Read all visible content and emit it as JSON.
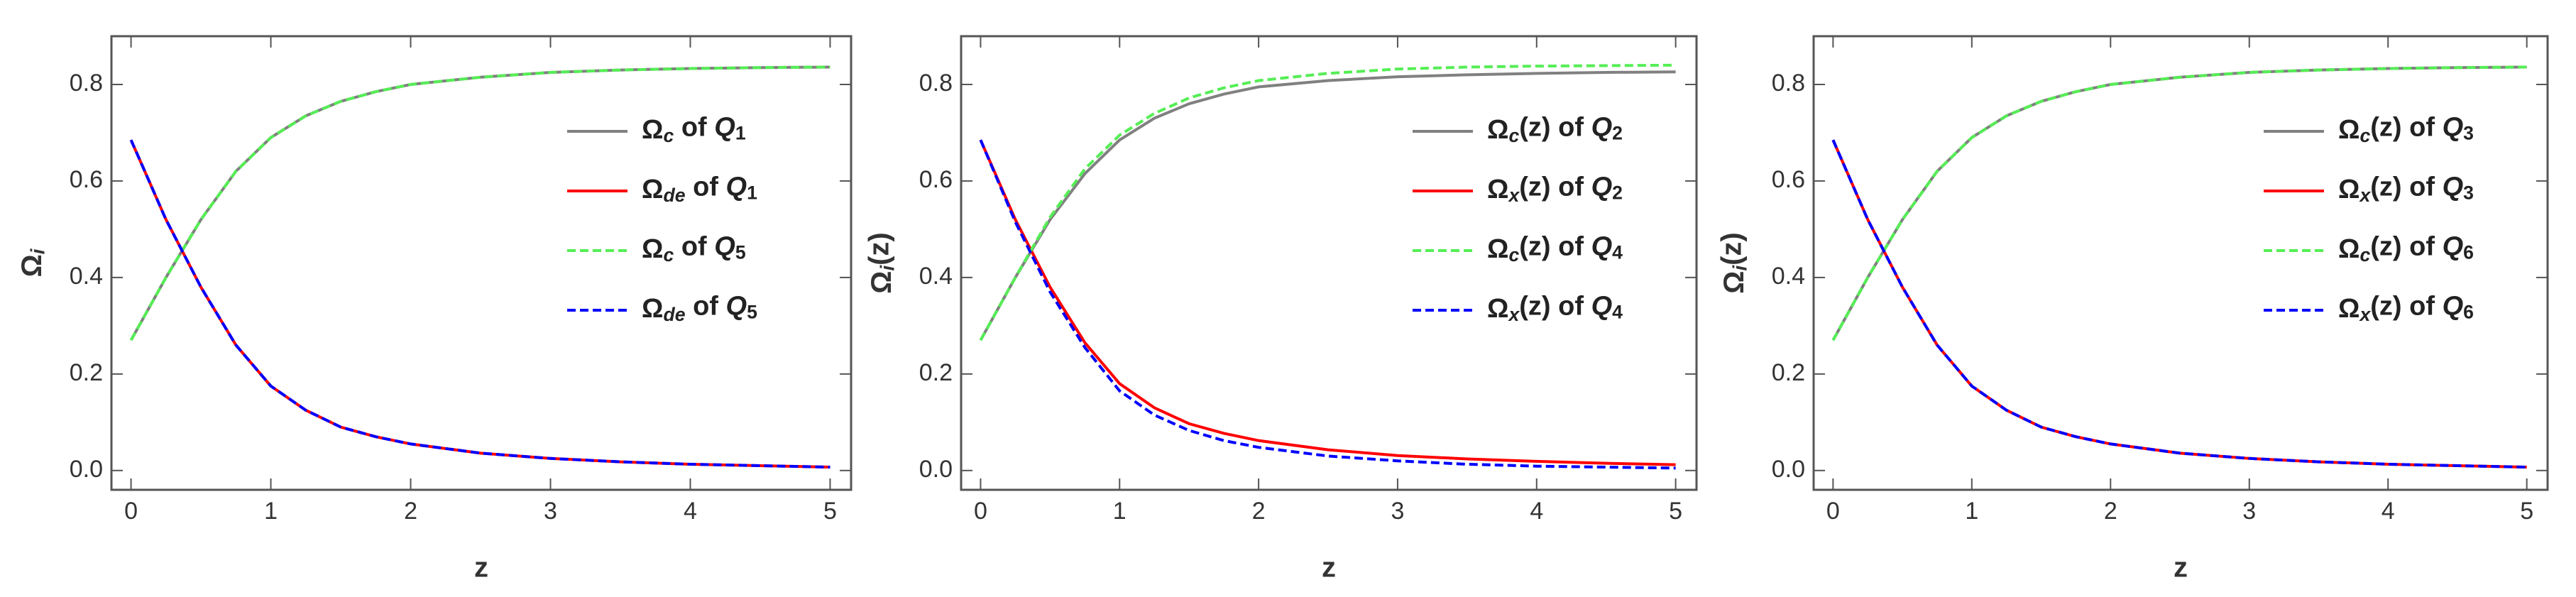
{
  "chart_data": [
    {
      "type": "line",
      "xlabel": "z",
      "ylabel": "Ωi",
      "legend": "right",
      "x": [
        0,
        0.25,
        0.5,
        0.75,
        1,
        1.25,
        1.5,
        1.75,
        2,
        2.5,
        3,
        3.5,
        4,
        4.5,
        5
      ],
      "xlim": [
        -0.14,
        5.15
      ],
      "ylim": [
        -0.04,
        0.9
      ],
      "xticks": [
        0,
        1,
        2,
        3,
        4,
        5
      ],
      "yticks": [
        {
          "value": 0,
          "label": "0.0"
        },
        {
          "value": 0.2,
          "label": "0.2"
        },
        {
          "value": 0.4,
          "label": "0.4"
        },
        {
          "value": 0.6,
          "label": "0.6"
        },
        {
          "value": 0.8,
          "label": "0.8"
        }
      ],
      "series": [
        {
          "name": "Ωc of Q1",
          "color": "#808080",
          "linestyle": "solid",
          "values": [
            0.27,
            0.4,
            0.52,
            0.62,
            0.69,
            0.735,
            0.765,
            0.785,
            0.8,
            0.815,
            0.825,
            0.83,
            0.833,
            0.835,
            0.836
          ]
        },
        {
          "name": "Ωde of Q1",
          "color": "#ff0000",
          "linestyle": "solid",
          "values": [
            0.685,
            0.52,
            0.38,
            0.26,
            0.175,
            0.125,
            0.09,
            0.07,
            0.055,
            0.036,
            0.025,
            0.018,
            0.013,
            0.01,
            0.007
          ]
        },
        {
          "name": "Ωc of Q5",
          "color": "#55ee55",
          "linestyle": "dashed",
          "values": [
            0.27,
            0.4,
            0.52,
            0.62,
            0.69,
            0.735,
            0.765,
            0.785,
            0.8,
            0.815,
            0.825,
            0.83,
            0.833,
            0.835,
            0.836
          ]
        },
        {
          "name": "Ωde of Q5",
          "color": "#0000ff",
          "linestyle": "dashed",
          "values": [
            0.685,
            0.52,
            0.38,
            0.26,
            0.175,
            0.125,
            0.09,
            0.07,
            0.055,
            0.036,
            0.025,
            0.018,
            0.013,
            0.01,
            0.007
          ]
        }
      ]
    },
    {
      "type": "line",
      "xlabel": "z",
      "ylabel": "Ωi(z)",
      "legend": "right",
      "x": [
        0,
        0.25,
        0.5,
        0.75,
        1,
        1.25,
        1.5,
        1.75,
        2,
        2.5,
        3,
        3.5,
        4,
        4.5,
        5
      ],
      "xlim": [
        -0.14,
        5.15
      ],
      "ylim": [
        -0.04,
        0.9
      ],
      "xticks": [
        0,
        1,
        2,
        3,
        4,
        5
      ],
      "yticks": [
        {
          "value": 0,
          "label": "0.0"
        },
        {
          "value": 0.2,
          "label": "0.2"
        },
        {
          "value": 0.4,
          "label": "0.4"
        },
        {
          "value": 0.6,
          "label": "0.6"
        },
        {
          "value": 0.8,
          "label": "0.8"
        }
      ],
      "series": [
        {
          "name": "Ωc(z) of Q2",
          "color": "#808080",
          "linestyle": "solid",
          "values": [
            0.27,
            0.4,
            0.52,
            0.615,
            0.685,
            0.73,
            0.76,
            0.78,
            0.795,
            0.808,
            0.816,
            0.82,
            0.823,
            0.825,
            0.826
          ]
        },
        {
          "name": "Ωx(z) of Q2",
          "color": "#ff0000",
          "linestyle": "solid",
          "values": [
            0.685,
            0.52,
            0.38,
            0.265,
            0.18,
            0.13,
            0.097,
            0.077,
            0.062,
            0.043,
            0.031,
            0.024,
            0.019,
            0.015,
            0.012
          ]
        },
        {
          "name": "Ωc(z) of Q4",
          "color": "#55ee55",
          "linestyle": "dashed",
          "values": [
            0.27,
            0.4,
            0.525,
            0.625,
            0.695,
            0.74,
            0.772,
            0.793,
            0.808,
            0.823,
            0.832,
            0.836,
            0.838,
            0.839,
            0.84
          ]
        },
        {
          "name": "Ωx(z) of Q4",
          "color": "#0000ff",
          "linestyle": "dashed",
          "values": [
            0.685,
            0.515,
            0.37,
            0.255,
            0.165,
            0.115,
            0.083,
            0.062,
            0.048,
            0.03,
            0.02,
            0.013,
            0.009,
            0.007,
            0.005
          ]
        }
      ]
    },
    {
      "type": "line",
      "xlabel": "z",
      "ylabel": "Ωi(z)",
      "legend": "right",
      "x": [
        0,
        0.25,
        0.5,
        0.75,
        1,
        1.25,
        1.5,
        1.75,
        2,
        2.5,
        3,
        3.5,
        4,
        4.5,
        5
      ],
      "xlim": [
        -0.14,
        5.15
      ],
      "ylim": [
        -0.04,
        0.9
      ],
      "xticks": [
        0,
        1,
        2,
        3,
        4,
        5
      ],
      "yticks": [
        {
          "value": 0,
          "label": "0.0"
        },
        {
          "value": 0.2,
          "label": "0.2"
        },
        {
          "value": 0.4,
          "label": "0.4"
        },
        {
          "value": 0.6,
          "label": "0.6"
        },
        {
          "value": 0.8,
          "label": "0.8"
        }
      ],
      "series": [
        {
          "name": "Ωc(z) of Q3",
          "color": "#808080",
          "linestyle": "solid",
          "values": [
            0.27,
            0.4,
            0.52,
            0.62,
            0.69,
            0.735,
            0.765,
            0.785,
            0.8,
            0.815,
            0.825,
            0.83,
            0.833,
            0.835,
            0.836
          ]
        },
        {
          "name": "Ωx(z) of Q3",
          "color": "#ff0000",
          "linestyle": "solid",
          "values": [
            0.685,
            0.52,
            0.38,
            0.26,
            0.175,
            0.125,
            0.09,
            0.07,
            0.055,
            0.036,
            0.025,
            0.018,
            0.013,
            0.01,
            0.007
          ]
        },
        {
          "name": "Ωc(z) of Q6",
          "color": "#55ee55",
          "linestyle": "dashed",
          "values": [
            0.27,
            0.4,
            0.52,
            0.62,
            0.69,
            0.735,
            0.765,
            0.785,
            0.8,
            0.815,
            0.825,
            0.83,
            0.833,
            0.835,
            0.836
          ]
        },
        {
          "name": "Ωx(z) of Q6",
          "color": "#0000ff",
          "linestyle": "dashed",
          "values": [
            0.685,
            0.52,
            0.38,
            0.26,
            0.175,
            0.125,
            0.09,
            0.07,
            0.055,
            0.036,
            0.025,
            0.018,
            0.013,
            0.01,
            0.007
          ]
        }
      ]
    }
  ]
}
